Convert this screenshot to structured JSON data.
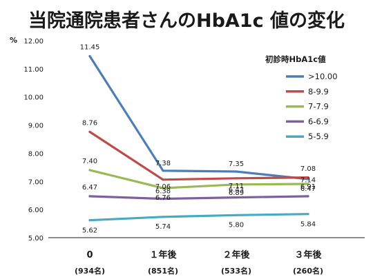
{
  "chart_data": {
    "type": "line",
    "title": "当院通院患者さんのHbA1c 値の変化",
    "ylabel": "%",
    "ylim": [
      5.0,
      12.0
    ],
    "y_ticks": [
      "5.00",
      "6.00",
      "7.00",
      "8.00",
      "9.00",
      "10.00",
      "11.00",
      "12.00"
    ],
    "categories": [
      "0",
      "１年後",
      "２年後",
      "３年後"
    ],
    "category_sublabels": [
      "(934名)",
      "(851名)",
      "(533名)",
      "(260名)"
    ],
    "legend_title": "初診時HbA1c値",
    "legend_position": "right",
    "grid": false,
    "series": [
      {
        "name": ">10.00",
        "color": "#4a7ebb",
        "values": [
          11.45,
          7.38,
          7.35,
          7.08
        ],
        "labels": [
          "11.45",
          "7.38",
          "7.35",
          "7.08"
        ]
      },
      {
        "name": "8-9.9",
        "color": "#be4b48",
        "values": [
          8.76,
          7.06,
          7.11,
          7.14
        ],
        "labels": [
          "8.76",
          "7.06",
          "7.11",
          "7.14"
        ]
      },
      {
        "name": "7-7.9",
        "color": "#98b954",
        "values": [
          7.4,
          6.76,
          6.89,
          6.91
        ],
        "labels": [
          "7.40",
          "6.76",
          "6.89",
          "6.91"
        ]
      },
      {
        "name": "6-6.9",
        "color": "#7d60a0",
        "values": [
          6.47,
          6.38,
          6.43,
          6.47
        ],
        "labels": [
          "6.47",
          "6.38",
          "6.43",
          "6.47"
        ]
      },
      {
        "name": "5-5.9",
        "color": "#46aac5",
        "values": [
          5.62,
          5.74,
          5.8,
          5.84
        ],
        "labels": [
          "5.62",
          "5.74",
          "5.80",
          "5.84"
        ]
      }
    ]
  }
}
